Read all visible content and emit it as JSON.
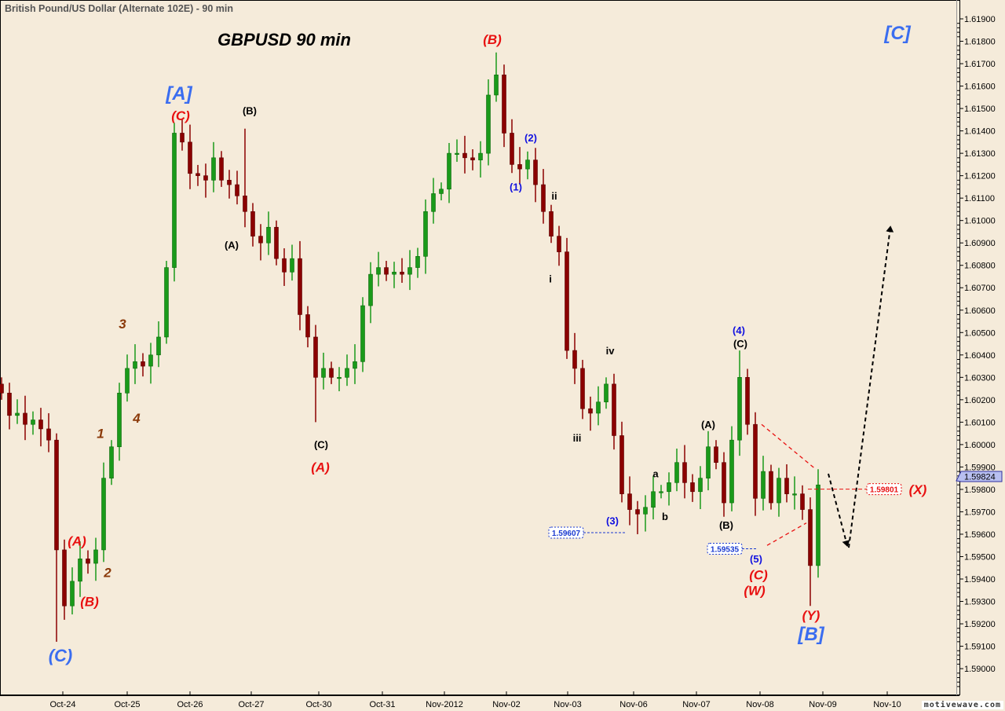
{
  "window_title": "British Pound/US Dollar (Alternate 102E) - 90 min",
  "brand": "motivewave.com",
  "chart_data": {
    "type": "candlestick",
    "title": "GBPUSD  90 min",
    "symbol": "GBPUSD",
    "timeframe": "90 min",
    "ylim": [
      1.5885,
      1.6198
    ],
    "y_ticks": [
      "1.61900",
      "1.61800",
      "1.61700",
      "1.61600",
      "1.61500",
      "1.61400",
      "1.61300",
      "1.61200",
      "1.61100",
      "1.61000",
      "1.60900",
      "1.60800",
      "1.60700",
      "1.60600",
      "1.60500",
      "1.60400",
      "1.60300",
      "1.60200",
      "1.60100",
      "1.60000",
      "1.59900",
      "1.59800",
      "1.59700",
      "1.59600",
      "1.59500",
      "1.59400",
      "1.59300",
      "1.59200",
      "1.59100",
      "1.59000"
    ],
    "x_ticks": [
      {
        "label": "Oct-24",
        "bar": 7.8
      },
      {
        "label": "Oct-25",
        "bar": 16.0
      },
      {
        "label": "Oct-26",
        "bar": 24.0
      },
      {
        "label": "Oct-27",
        "bar": 31.8
      },
      {
        "label": "Oct-30",
        "bar": 40.4
      },
      {
        "label": "Oct-31",
        "bar": 48.5
      },
      {
        "label": "Nov-2012",
        "bar": 56.4
      },
      {
        "label": "Nov-02",
        "bar": 64.3
      },
      {
        "label": "Nov-03",
        "bar": 72.1
      },
      {
        "label": "Nov-06",
        "bar": 80.5
      },
      {
        "label": "Nov-07",
        "bar": 88.5
      },
      {
        "label": "Nov-08",
        "bar": 96.6
      },
      {
        "label": "Nov-09",
        "bar": 104.6
      },
      {
        "label": "Nov-10",
        "bar": 112.8
      }
    ],
    "closes": [
      1.6023,
      1.6013,
      1.6014,
      1.6009,
      1.6011,
      1.6007,
      1.6002,
      1.5953,
      1.5928,
      1.5939,
      1.5949,
      1.5947,
      1.5953,
      1.5985,
      1.5999,
      1.6023,
      1.6034,
      1.6037,
      1.6035,
      1.604,
      1.6048,
      1.6079,
      1.6139,
      1.6135,
      1.6121,
      1.612,
      1.6118,
      1.6128,
      1.6118,
      1.6116,
      1.6111,
      1.6104,
      1.6093,
      1.609,
      1.6097,
      1.6083,
      1.6077,
      1.6083,
      1.6058,
      1.6048,
      1.603,
      1.6034,
      1.603,
      1.603,
      1.6034,
      1.6037,
      1.6062,
      1.6076,
      1.6079,
      1.6076,
      1.6077,
      1.6076,
      1.6079,
      1.6084,
      1.6104,
      1.6112,
      1.6114,
      1.613,
      1.613,
      1.6128,
      1.6127,
      1.613,
      1.6156,
      1.6165,
      1.6139,
      1.6125,
      1.6123,
      1.6127,
      1.6116,
      1.6104,
      1.6093,
      1.6086,
      1.6042,
      1.6034,
      1.6016,
      1.6014,
      1.6019,
      1.6027,
      1.6004,
      1.5978,
      1.5971,
      1.5969,
      1.5972,
      1.5979,
      1.5979,
      1.5983,
      1.5992,
      1.5983,
      1.5979,
      1.5985,
      1.5999,
      1.5992,
      1.5974,
      1.6002,
      1.603,
      1.6009,
      1.5976,
      1.5988,
      1.5974,
      1.5985,
      1.5978,
      1.5978,
      1.5971,
      1.5946,
      1.5982
    ],
    "extreme_wicks": [
      {
        "bar": 7,
        "low": 1.5912
      },
      {
        "bar": 31,
        "high": 1.6141
      },
      {
        "bar": 63,
        "high": 1.6175
      },
      {
        "bar": 40,
        "low": 1.601
      },
      {
        "bar": 94,
        "high": 1.6042
      },
      {
        "bar": 103,
        "low": 1.5928
      },
      {
        "bar": 81,
        "low": 1.596
      }
    ],
    "up_color": "#1a9a1a",
    "down_color": "#8b0000",
    "current_price": "1.59824",
    "wave_labels": [
      {
        "text": "[C]",
        "color": "#3a6df0",
        "bar": 114.3,
        "price": 1.6184,
        "size": "xl"
      },
      {
        "text": "[A]",
        "color": "#3a6df0",
        "bar": 22.8,
        "price": 1.6157,
        "size": "xl"
      },
      {
        "text": "(C)",
        "color": "#e81010",
        "bar": 23.0,
        "price": 1.6147,
        "size": "m"
      },
      {
        "text": "(B)",
        "color": "#000000",
        "bar": 31.8,
        "price": 1.6149,
        "size": "s"
      },
      {
        "text": "(B)",
        "color": "#e81010",
        "bar": 62.7,
        "price": 1.6181,
        "size": "m"
      },
      {
        "text": "(2)",
        "color": "#1010e0",
        "bar": 67.6,
        "price": 1.6137,
        "size": "s"
      },
      {
        "text": "(1)",
        "color": "#1010e0",
        "bar": 65.7,
        "price": 1.6115,
        "size": "s"
      },
      {
        "text": "ii",
        "color": "#000000",
        "bar": 70.6,
        "price": 1.6111,
        "size": "s"
      },
      {
        "text": "i",
        "color": "#000000",
        "bar": 70.1,
        "price": 1.6074,
        "size": "s"
      },
      {
        "text": "(A)",
        "color": "#000000",
        "bar": 29.5,
        "price": 1.6089,
        "size": "s"
      },
      {
        "text": "3",
        "color": "#8b3a0a",
        "bar": 15.6,
        "price": 1.6054,
        "size": "m"
      },
      {
        "text": "4",
        "color": "#8b3a0a",
        "bar": 17.4,
        "price": 1.6012,
        "size": "m"
      },
      {
        "text": "1",
        "color": "#8b3a0a",
        "bar": 12.8,
        "price": 1.6005,
        "size": "m"
      },
      {
        "text": "2",
        "color": "#8b3a0a",
        "bar": 13.7,
        "price": 1.5943,
        "size": "m"
      },
      {
        "text": "(A)",
        "color": "#e81010",
        "bar": 9.8,
        "price": 1.5957,
        "size": "m"
      },
      {
        "text": "(B)",
        "color": "#e81010",
        "bar": 11.4,
        "price": 1.593,
        "size": "m"
      },
      {
        "text": "(C)",
        "color": "#3a6df0",
        "bar": 7.7,
        "price": 1.5906,
        "size": "l"
      },
      {
        "text": "(C)",
        "color": "#000000",
        "bar": 40.9,
        "price": 1.6,
        "size": "s"
      },
      {
        "text": "(A)",
        "color": "#e81010",
        "bar": 40.8,
        "price": 1.599,
        "size": "m"
      },
      {
        "text": "iv",
        "color": "#000000",
        "bar": 77.7,
        "price": 1.6042,
        "size": "s"
      },
      {
        "text": "iii",
        "color": "#000000",
        "bar": 73.5,
        "price": 1.6003,
        "size": "s"
      },
      {
        "text": "(3)",
        "color": "#1010e0",
        "bar": 78.0,
        "price": 1.5966,
        "size": "s"
      },
      {
        "text": "a",
        "color": "#000000",
        "bar": 83.5,
        "price": 1.5987,
        "size": "s"
      },
      {
        "text": "b",
        "color": "#000000",
        "bar": 84.7,
        "price": 1.5968,
        "size": "s"
      },
      {
        "text": "(4)",
        "color": "#1010e0",
        "bar": 94.1,
        "price": 1.6051,
        "size": "s"
      },
      {
        "text": "(C)",
        "color": "#000000",
        "bar": 94.3,
        "price": 1.6045,
        "size": "s"
      },
      {
        "text": "(A)",
        "color": "#000000",
        "bar": 90.2,
        "price": 1.6009,
        "size": "s"
      },
      {
        "text": "(B)",
        "color": "#000000",
        "bar": 92.5,
        "price": 1.5964,
        "size": "s"
      },
      {
        "text": "(5)",
        "color": "#1010e0",
        "bar": 96.3,
        "price": 1.5949,
        "size": "s"
      },
      {
        "text": "(C)",
        "color": "#e81010",
        "bar": 96.6,
        "price": 1.5942,
        "size": "m"
      },
      {
        "text": "(W)",
        "color": "#e81010",
        "bar": 96.1,
        "price": 1.5935,
        "size": "m"
      },
      {
        "text": "(Y)",
        "color": "#e81010",
        "bar": 103.3,
        "price": 1.5924,
        "size": "m"
      },
      {
        "text": "[B]",
        "color": "#3a6df0",
        "bar": 103.3,
        "price": 1.5917,
        "size": "xl"
      },
      {
        "text": "(X)",
        "color": "#e81010",
        "bar": 116.9,
        "price": 1.598,
        "size": "m"
      }
    ],
    "price_markers": [
      {
        "text": "1.59607",
        "color": "#1a3ad0",
        "price": 1.59607,
        "bar": 71.9,
        "line_to_bar": 79.5
      },
      {
        "text": "1.59535",
        "color": "#1a3ad0",
        "price": 1.59535,
        "bar": 92.1,
        "line_to_bar": 96.3
      },
      {
        "text": "1.59801",
        "color": "#e81010",
        "price": 1.59801,
        "bar": 112.4,
        "line_from_bar": 102.7
      }
    ],
    "trend_lines": [
      {
        "color": "#e81010",
        "from": [
          96.8,
          1.6009
        ],
        "to": [
          103.7,
          1.5989
        ],
        "arrow": false
      },
      {
        "color": "#e81010",
        "from": [
          97.5,
          1.5955
        ],
        "to": [
          102.5,
          1.5965
        ],
        "arrow": false
      },
      {
        "color": "#000000",
        "from": [
          105.3,
          1.5987
        ],
        "to": [
          107.7,
          1.5955
        ],
        "arrow": true
      },
      {
        "color": "#000000",
        "from": [
          107.9,
          1.5954
        ],
        "to": [
          113.2,
          1.6097
        ],
        "arrow": true
      }
    ]
  }
}
